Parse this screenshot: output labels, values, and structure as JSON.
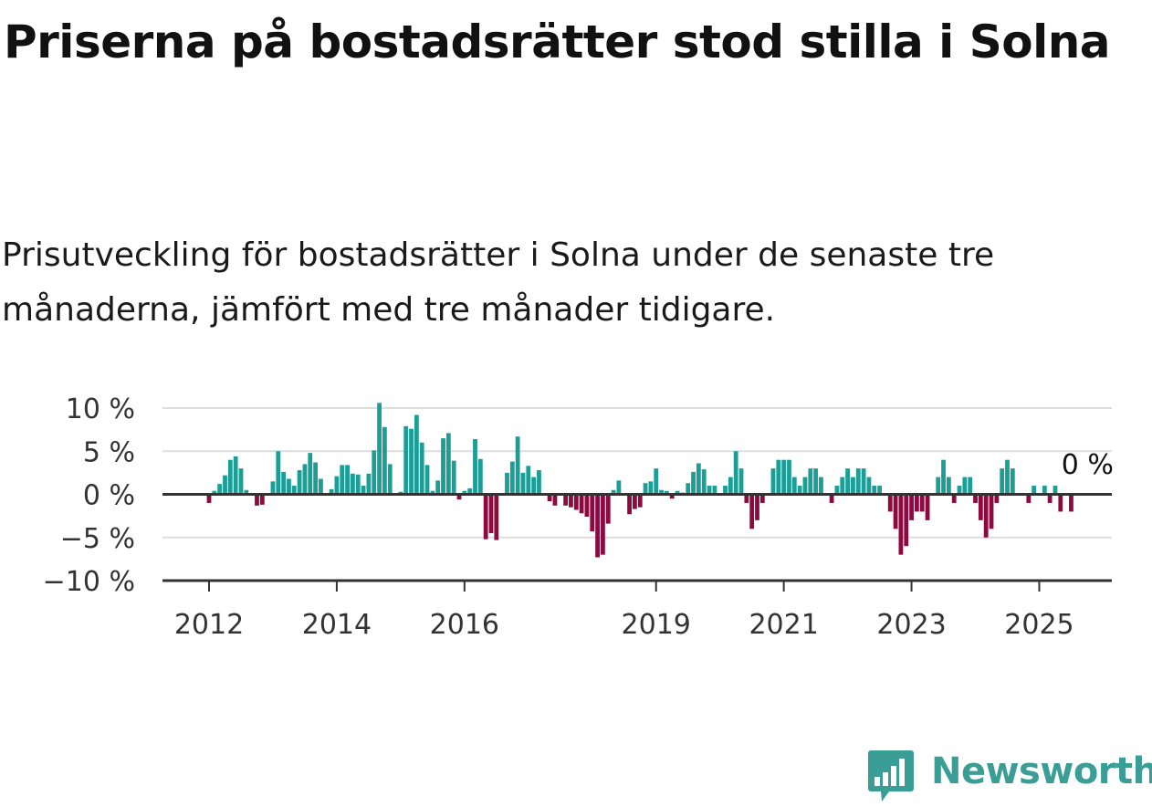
{
  "title": "Priserna på bostadsrätter stod stilla i Solna",
  "subtitle": "Prisutveckling för bostadsrätter i Solna under de senaste tre månaderna, jämfört med tre månader tidigare.",
  "brand": {
    "name": "Newsworthy",
    "logo_icon": "bar-chart-speech-bubble-icon"
  },
  "colors": {
    "positive": "#1a9e96",
    "negative": "#8c0a40",
    "grid": "#dddddd",
    "axis": "#333333",
    "brand": "#3a9e96"
  },
  "chart_data": {
    "type": "bar",
    "title": "",
    "xlabel": "",
    "ylabel": "",
    "ylim": [
      -10,
      10
    ],
    "y_ticks": [
      10,
      5,
      0,
      -5,
      -10
    ],
    "y_tick_labels": [
      "10 %",
      "5 %",
      "0 %",
      "−5 %",
      "−10 %"
    ],
    "x_ticks": [
      2012,
      2014,
      2016,
      2019,
      2021,
      2023,
      2025
    ],
    "x_tick_labels": [
      "2012",
      "2014",
      "2016",
      "2019",
      "2021",
      "2023",
      "2025"
    ],
    "grid": true,
    "last_value_label": "0 %",
    "series": [
      {
        "x_start": "2012-01",
        "frequency": "monthly",
        "values": [
          -1.0,
          0.4,
          1.2,
          2.2,
          4.0,
          4.4,
          3.0,
          0.5,
          0.0,
          -1.3,
          -1.2,
          0.0,
          1.5,
          5.0,
          2.6,
          1.8,
          1.0,
          2.8,
          3.5,
          4.8,
          3.7,
          1.8,
          0.0,
          0.6,
          2.1,
          3.4,
          3.4,
          2.4,
          2.3,
          1.0,
          2.4,
          5.1,
          10.6,
          7.8,
          3.5,
          0.0,
          0.3,
          7.9,
          7.6,
          9.2,
          6.0,
          3.4,
          0.4,
          1.6,
          6.5,
          7.1,
          3.9,
          -0.6,
          0.4,
          0.7,
          6.4,
          4.1,
          -5.2,
          -4.5,
          -5.3,
          0.0,
          2.5,
          3.8,
          6.7,
          2.5,
          3.3,
          2.0,
          2.8,
          0.0,
          -0.8,
          -1.3,
          0.0,
          -1.3,
          -1.5,
          -1.8,
          -2.2,
          -2.6,
          -4.3,
          -7.3,
          -7.0,
          -3.4,
          0.5,
          1.6,
          0.0,
          -2.3,
          -1.7,
          -1.5,
          1.3,
          1.5,
          3.0,
          0.5,
          0.4,
          -0.5,
          0.4,
          0.2,
          1.3,
          2.6,
          3.6,
          2.9,
          1.0,
          1.0,
          0.0,
          1.0,
          2.0,
          5.0,
          3.0,
          -1.0,
          -4.0,
          -3.0,
          -1.0,
          0.0,
          3.0,
          4.0,
          4.0,
          4.0,
          2.0,
          1.0,
          2.0,
          3.0,
          3.0,
          2.0,
          0.0,
          -1.0,
          1.0,
          2.0,
          3.0,
          2.0,
          3.0,
          3.0,
          2.0,
          1.0,
          1.0,
          0.0,
          -2.0,
          -4.0,
          -7.0,
          -6.0,
          -3.0,
          -2.0,
          -2.0,
          -3.0,
          0.0,
          2.0,
          4.0,
          2.0,
          -1.0,
          1.0,
          2.0,
          2.0,
          -1.0,
          -3.0,
          -5.0,
          -4.0,
          -1.0,
          3.0,
          4.0,
          3.0,
          0.0,
          0.0,
          -1.0,
          1.0,
          0.0,
          1.0,
          -1.0,
          1.0,
          -2.0,
          0.0,
          -2.0,
          0.0
        ]
      }
    ]
  }
}
